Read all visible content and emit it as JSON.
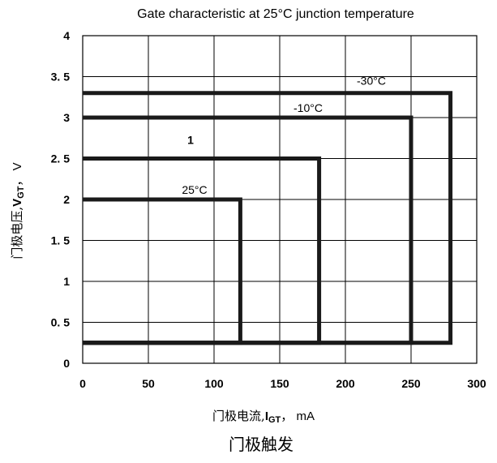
{
  "chart_data": {
    "type": "line",
    "title": "Gate characteristic at 25°C junction temperature",
    "xlabel": {
      "prefix": "门极电流,",
      "var": "I",
      "sub": "GT",
      "suffix": "，  mA"
    },
    "ylabel": {
      "prefix": "门极电压,",
      "var": "V",
      "sub": "GT",
      "suffix": "，  V"
    },
    "caption": "门极触发",
    "xlim": [
      0,
      300
    ],
    "ylim": [
      0,
      4
    ],
    "xticks": [
      {
        "value": 0,
        "label": "0"
      },
      {
        "value": 50,
        "label": "50"
      },
      {
        "value": 100,
        "label": "100"
      },
      {
        "value": 150,
        "label": "150"
      },
      {
        "value": 200,
        "label": "200"
      },
      {
        "value": 250,
        "label": "250"
      },
      {
        "value": 300,
        "label": "300"
      }
    ],
    "yticks": [
      {
        "value": 0,
        "label": "0"
      },
      {
        "value": 0.5,
        "label": "0. 5"
      },
      {
        "value": 1,
        "label": "1"
      },
      {
        "value": 1.5,
        "label": "1. 5"
      },
      {
        "value": 2,
        "label": "2"
      },
      {
        "value": 2.5,
        "label": "2. 5"
      },
      {
        "value": 3,
        "label": "3"
      },
      {
        "value": 3.5,
        "label": "3. 5"
      },
      {
        "value": 4,
        "label": "4"
      }
    ],
    "grid": true,
    "series": [
      {
        "name": "25°C",
        "top": 2.0,
        "right": 120,
        "bottom": 0.25
      },
      {
        "name": "1",
        "top": 2.5,
        "right": 180,
        "bottom": 0.25
      },
      {
        "name": "-10°C",
        "top": 3.0,
        "right": 250,
        "bottom": 0.25
      },
      {
        "name": "-30°C",
        "top": 3.3,
        "right": 280,
        "bottom": 0.25
      }
    ],
    "colors": {
      "grid": "#000000",
      "series": "#1a1a1a"
    }
  }
}
